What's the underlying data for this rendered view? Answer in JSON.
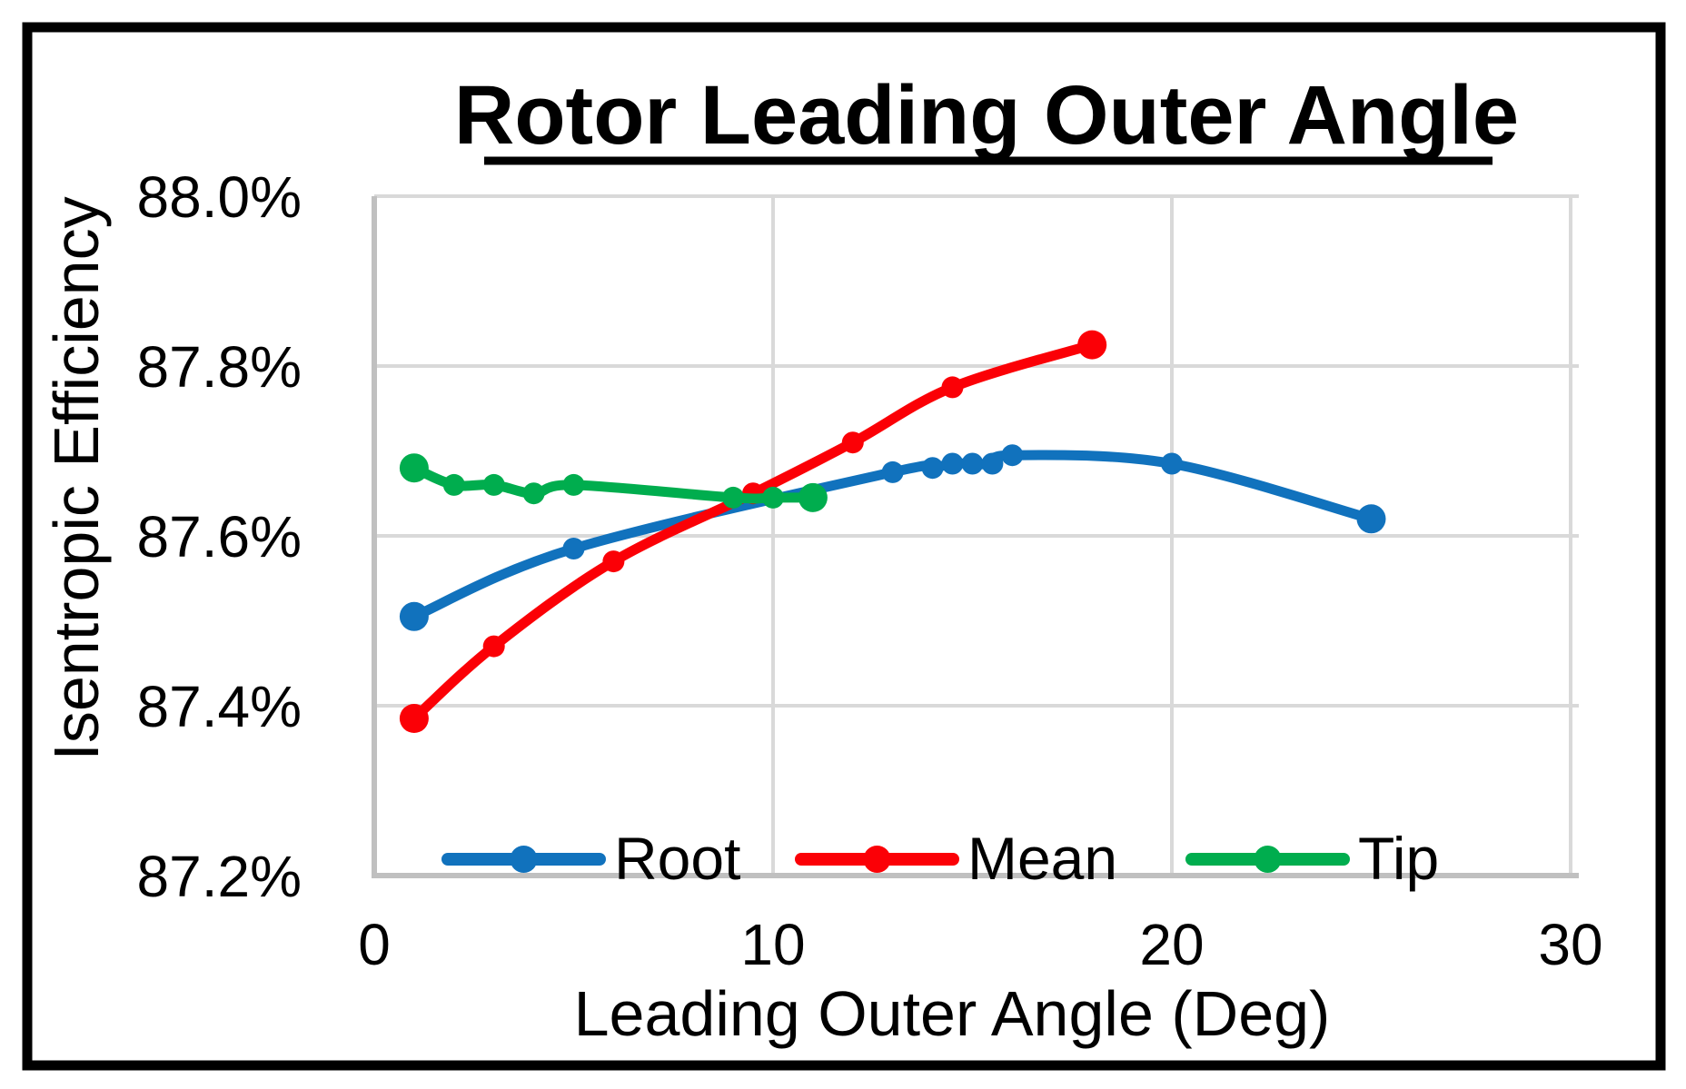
{
  "chart_data": {
    "type": "line",
    "title": "Rotor Leading Outer Angle",
    "xlabel": "Leading Outer Angle (Deg)",
    "ylabel": "Isentropic Efficiency",
    "x_ticks": [
      0,
      10,
      20,
      30
    ],
    "y_ticks": [
      "88.0%",
      "87.8%",
      "87.6%",
      "87.4%",
      "87.2%"
    ],
    "y_tick_values": [
      88.0,
      87.8,
      87.6,
      87.4,
      87.2
    ],
    "xlim": [
      0,
      30
    ],
    "ylim": [
      87.2,
      88.0
    ],
    "grid": true,
    "legend_position": "bottom-inside",
    "series": [
      {
        "name": "Root",
        "color": "#1172BD",
        "points": [
          [
            1,
            87.505
          ],
          [
            5,
            87.585
          ],
          [
            13,
            87.675
          ],
          [
            14,
            87.68
          ],
          [
            14.5,
            87.685
          ],
          [
            15,
            87.685
          ],
          [
            15.5,
            87.685
          ],
          [
            16,
            87.695
          ],
          [
            20,
            87.685
          ],
          [
            25,
            87.62
          ]
        ]
      },
      {
        "name": "Mean",
        "color": "#FB0006",
        "points": [
          [
            1,
            87.385
          ],
          [
            3,
            87.47
          ],
          [
            6,
            87.57
          ],
          [
            9.5,
            87.65
          ],
          [
            12,
            87.71
          ],
          [
            14.5,
            87.775
          ],
          [
            18,
            87.825
          ]
        ]
      },
      {
        "name": "Tip",
        "color": "#00AD4E",
        "points": [
          [
            1,
            87.68
          ],
          [
            2,
            87.66
          ],
          [
            3,
            87.66
          ],
          [
            4,
            87.65
          ],
          [
            5,
            87.66
          ],
          [
            9,
            87.645
          ],
          [
            10,
            87.645
          ],
          [
            11,
            87.645
          ]
        ]
      }
    ]
  },
  "colors": {
    "gridline": "#D9D9D9",
    "axis_line": "#C0C0C0",
    "frame": "#000000",
    "text": "#000000",
    "background": "#FFFFFF"
  }
}
